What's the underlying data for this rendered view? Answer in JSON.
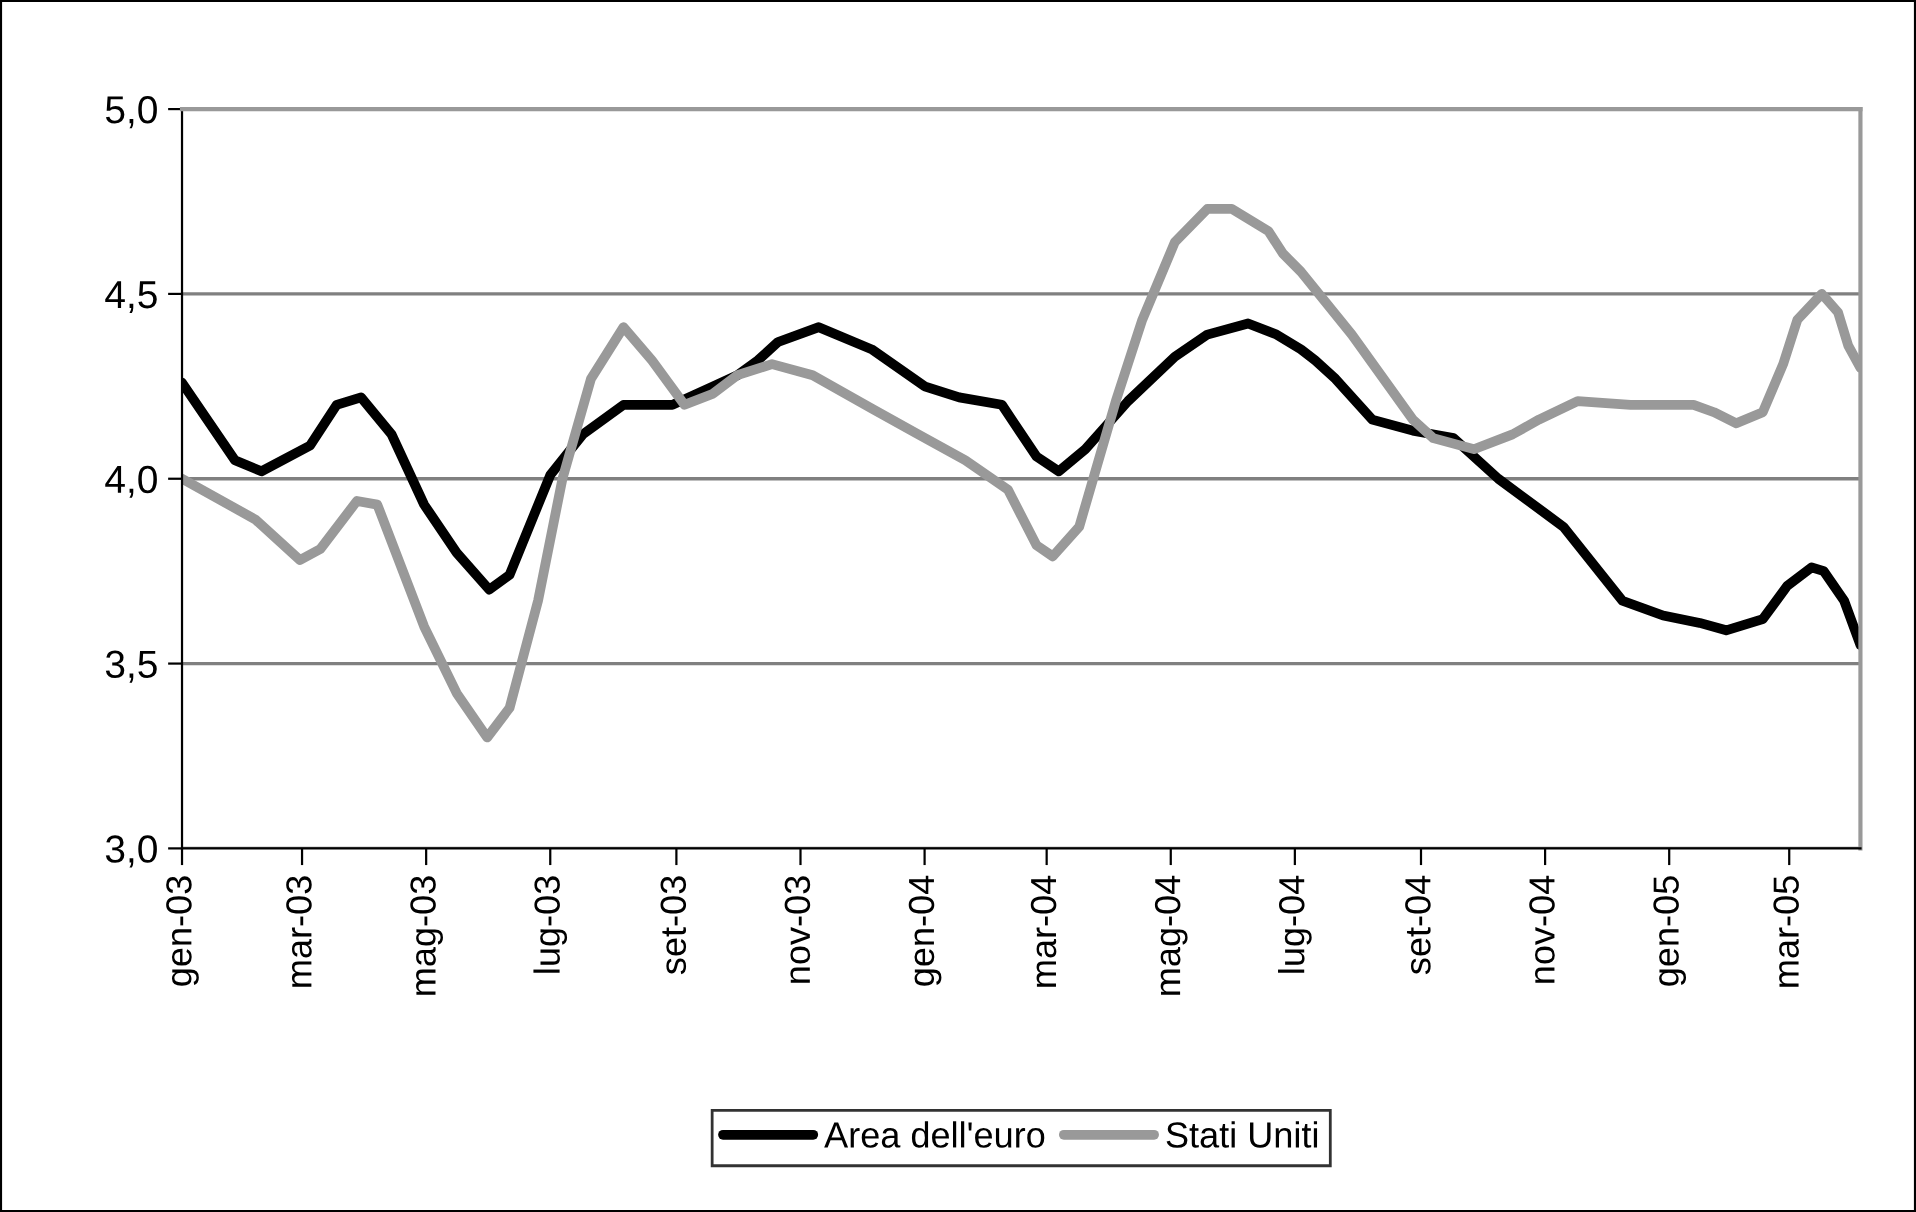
{
  "chart_data": {
    "type": "line",
    "xlim": [
      "2003-01-01",
      "2005-04-05"
    ],
    "xticks": [
      {
        "value": "2003-01-01",
        "label": "gen-03"
      },
      {
        "value": "2003-03-01",
        "label": "mar-03"
      },
      {
        "value": "2003-05-01",
        "label": "mag-03"
      },
      {
        "value": "2003-07-01",
        "label": "lug-03"
      },
      {
        "value": "2003-09-01",
        "label": "set-03"
      },
      {
        "value": "2003-11-01",
        "label": "nov-03"
      },
      {
        "value": "2004-01-01",
        "label": "gen-04"
      },
      {
        "value": "2004-03-01",
        "label": "mar-04"
      },
      {
        "value": "2004-05-01",
        "label": "mag-04"
      },
      {
        "value": "2004-07-01",
        "label": "lug-04"
      },
      {
        "value": "2004-09-01",
        "label": "set-04"
      },
      {
        "value": "2004-11-01",
        "label": "nov-04"
      },
      {
        "value": "2005-01-01",
        "label": "gen-05"
      },
      {
        "value": "2005-03-01",
        "label": "mar-05"
      }
    ],
    "ylim": [
      3.0,
      5.0
    ],
    "yticks": [
      {
        "value": 3.0,
        "label": "3,0"
      },
      {
        "value": 3.5,
        "label": "3,5"
      },
      {
        "value": 4.0,
        "label": "4,0"
      },
      {
        "value": 4.5,
        "label": "4,5"
      },
      {
        "value": 5.0,
        "label": "5,0"
      }
    ],
    "grid": "y",
    "legend": "bottom",
    "line_style": "solid",
    "marker": "none",
    "series": [
      {
        "name": "Area dell'euro",
        "color": "#000000",
        "x": [
          "2003-01-01",
          "2003-01-27",
          "2003-02-09",
          "2003-03-05",
          "2003-03-18",
          "2003-03-30",
          "2003-04-14",
          "2003-04-30",
          "2003-05-16",
          "2003-06-01",
          "2003-06-11",
          "2003-07-01",
          "2003-07-17",
          "2003-08-06",
          "2003-08-30",
          "2003-09-19",
          "2003-10-01",
          "2003-10-11",
          "2003-10-21",
          "2003-11-10",
          "2003-12-06",
          "2004-01-01",
          "2004-01-18",
          "2004-02-08",
          "2004-02-25",
          "2004-03-07",
          "2004-03-20",
          "2004-04-10",
          "2004-05-03",
          "2004-05-19",
          "2004-06-08",
          "2004-06-22",
          "2004-07-04",
          "2004-07-11",
          "2004-07-21",
          "2004-08-08",
          "2004-08-28",
          "2004-09-17",
          "2004-10-09",
          "2004-11-10",
          "2004-12-09",
          "2004-12-29",
          "2005-01-16",
          "2005-01-29",
          "2005-02-16",
          "2005-02-28",
          "2005-03-12",
          "2005-03-18",
          "2005-03-28",
          "2005-04-05"
        ],
        "values": [
          4.26,
          4.05,
          4.02,
          4.09,
          4.2,
          4.22,
          4.12,
          3.93,
          3.8,
          3.7,
          3.74,
          4.01,
          4.12,
          4.2,
          4.2,
          4.25,
          4.28,
          4.32,
          4.37,
          4.41,
          4.35,
          4.25,
          4.22,
          4.2,
          4.06,
          4.02,
          4.08,
          4.21,
          4.33,
          4.39,
          4.42,
          4.39,
          4.35,
          4.32,
          4.27,
          4.16,
          4.13,
          4.11,
          4.0,
          3.87,
          3.67,
          3.63,
          3.61,
          3.59,
          3.62,
          3.71,
          3.76,
          3.75,
          3.67,
          3.55
        ]
      },
      {
        "name": "Stati Uniti",
        "color": "#999999",
        "x": [
          "2003-01-01",
          "2003-02-06",
          "2003-02-28",
          "2003-03-10",
          "2003-03-28",
          "2003-04-07",
          "2003-04-30",
          "2003-05-16",
          "2003-05-31",
          "2003-06-11",
          "2003-06-25",
          "2003-07-07",
          "2003-07-21",
          "2003-08-06",
          "2003-08-20",
          "2003-09-05",
          "2003-09-19",
          "2003-10-01",
          "2003-10-18",
          "2003-11-07",
          "2003-12-06",
          "2003-12-29",
          "2004-01-21",
          "2004-02-11",
          "2004-02-25",
          "2004-03-04",
          "2004-03-17",
          "2004-04-04",
          "2004-04-17",
          "2004-05-03",
          "2004-05-19",
          "2004-05-31",
          "2004-06-18",
          "2004-06-25",
          "2004-07-04",
          "2004-07-29",
          "2004-08-28",
          "2004-09-07",
          "2004-09-27",
          "2004-10-16",
          "2004-10-29",
          "2004-11-17",
          "2004-12-13",
          "2005-01-13",
          "2005-01-23",
          "2005-02-03",
          "2005-02-16",
          "2005-02-26",
          "2005-03-05",
          "2005-03-17",
          "2005-03-25",
          "2005-03-30",
          "2005-04-05"
        ],
        "values": [
          4.0,
          3.89,
          3.78,
          3.81,
          3.94,
          3.93,
          3.6,
          3.42,
          3.3,
          3.38,
          3.67,
          4.0,
          4.27,
          4.41,
          4.32,
          4.2,
          4.23,
          4.28,
          4.31,
          4.28,
          4.19,
          4.12,
          4.05,
          3.97,
          3.82,
          3.79,
          3.87,
          4.21,
          4.43,
          4.64,
          4.73,
          4.73,
          4.67,
          4.61,
          4.56,
          4.39,
          4.16,
          4.11,
          4.08,
          4.12,
          4.16,
          4.21,
          4.2,
          4.2,
          4.18,
          4.15,
          4.18,
          4.31,
          4.43,
          4.5,
          4.45,
          4.36,
          4.3
        ]
      }
    ]
  }
}
